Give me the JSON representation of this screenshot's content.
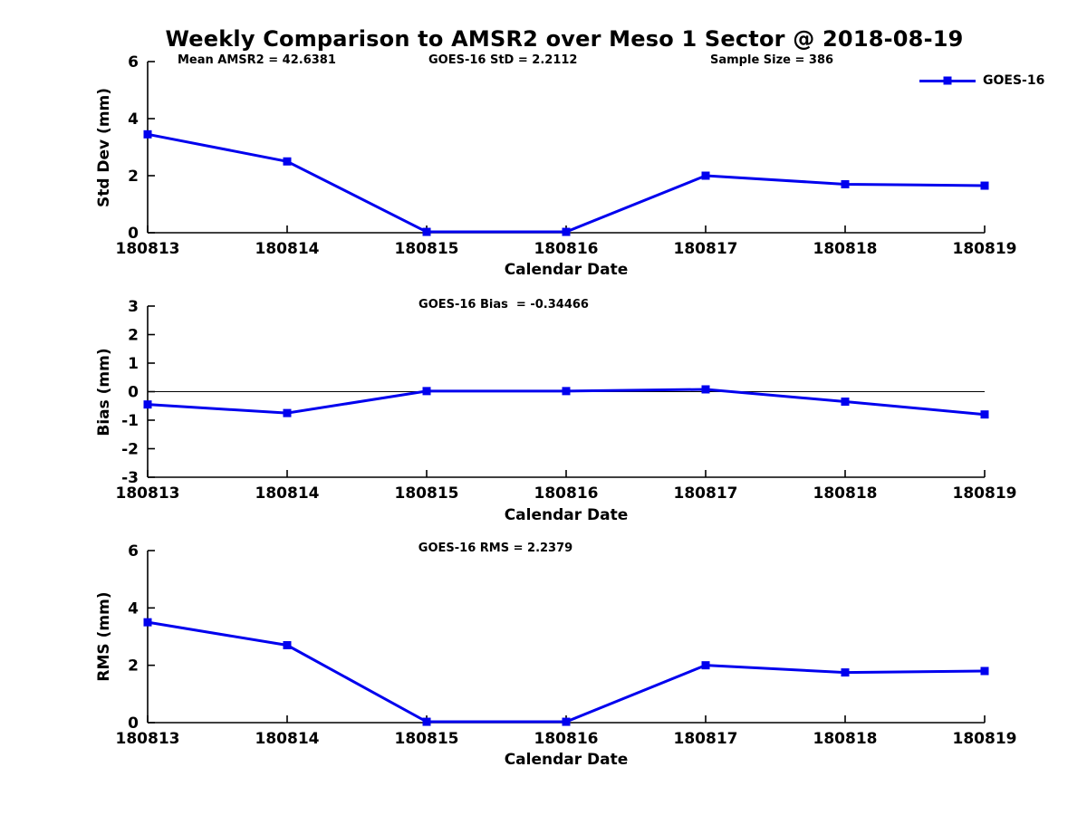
{
  "title": "Weekly Comparison to AMSR2 over Meso 1 Sector @ 2018-08-19",
  "legend": {
    "label": "GOES-16",
    "position": "top-right-outside"
  },
  "colors": {
    "line": "#0000ee",
    "axis": "#000000",
    "text": "#000000",
    "background": "#ffffff"
  },
  "chart_data": [
    {
      "type": "line",
      "name": "std-dev",
      "ylabel": "Std Dev (mm)",
      "xlabel": "Calendar Date",
      "categories": [
        "180813",
        "180814",
        "180815",
        "180816",
        "180817",
        "180818",
        "180819"
      ],
      "series": [
        {
          "name": "GOES-16",
          "marker": "square",
          "values": [
            3.45,
            2.5,
            0.03,
            0.03,
            2.0,
            1.7,
            1.65
          ]
        }
      ],
      "ylim": [
        0,
        6
      ],
      "yticks": [
        0,
        2,
        4,
        6
      ],
      "grid": false,
      "annotations": [
        "Mean AMSR2 = 42.6381",
        "GOES-16 StD = 2.2112",
        "Sample Size = 386"
      ]
    },
    {
      "type": "line",
      "name": "bias",
      "ylabel": "Bias (mm)",
      "xlabel": "Calendar Date",
      "categories": [
        "180813",
        "180814",
        "180815",
        "180816",
        "180817",
        "180818",
        "180819"
      ],
      "series": [
        {
          "name": "GOES-16",
          "marker": "square",
          "values": [
            -0.45,
            -0.75,
            0.02,
            0.02,
            0.08,
            -0.35,
            -0.8
          ]
        }
      ],
      "ylim": [
        -3,
        3
      ],
      "yticks": [
        -3,
        -2,
        -1,
        0,
        1,
        2,
        3
      ],
      "zero_line": true,
      "grid": false,
      "annotations": [
        "GOES-16 Bias  = -0.34466"
      ]
    },
    {
      "type": "line",
      "name": "rms",
      "ylabel": "RMS (mm)",
      "xlabel": "Calendar Date",
      "categories": [
        "180813",
        "180814",
        "180815",
        "180816",
        "180817",
        "180818",
        "180819"
      ],
      "series": [
        {
          "name": "GOES-16",
          "marker": "square",
          "values": [
            3.5,
            2.7,
            0.03,
            0.03,
            2.0,
            1.75,
            1.8
          ]
        }
      ],
      "ylim": [
        0,
        6
      ],
      "yticks": [
        0,
        2,
        4,
        6
      ],
      "grid": false,
      "annotations": [
        "GOES-16 RMS = 2.2379"
      ]
    }
  ]
}
